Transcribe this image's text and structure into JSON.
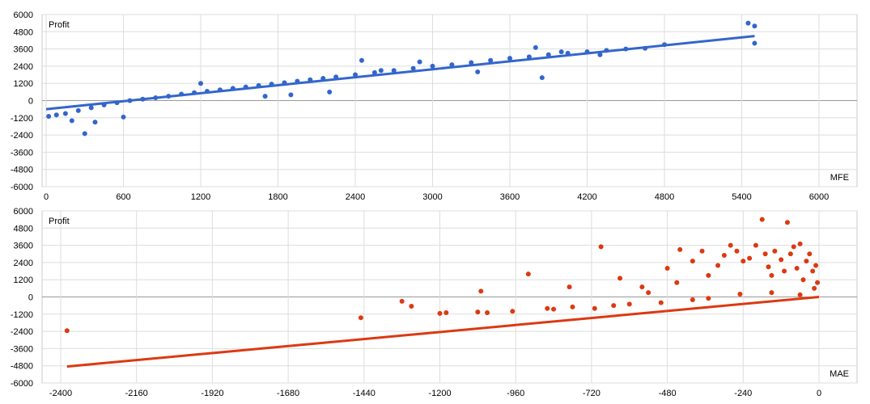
{
  "chart_data": [
    {
      "type": "scatter",
      "xlabel": "MFE",
      "ylabel": "Profit",
      "xlim": [
        0,
        6000
      ],
      "ylim": [
        -6000,
        6000
      ],
      "x_ticks": [
        "0",
        "600",
        "1200",
        "1800",
        "2400",
        "3000",
        "3600",
        "4200",
        "4800",
        "5400",
        "6000"
      ],
      "y_ticks": [
        "6000",
        "4800",
        "3600",
        "2400",
        "1200",
        "0",
        "-1200",
        "-2400",
        "-3600",
        "-4800",
        "-6000"
      ],
      "grid": true,
      "color": "#3366cc",
      "points": [
        [
          300,
          -2300
        ],
        [
          200,
          -1400
        ],
        [
          380,
          -1500
        ],
        [
          600,
          -1150
        ],
        [
          20,
          -1100
        ],
        [
          80,
          -1000
        ],
        [
          150,
          -900
        ],
        [
          250,
          -700
        ],
        [
          350,
          -500
        ],
        [
          450,
          -300
        ],
        [
          550,
          -150
        ],
        [
          650,
          0
        ],
        [
          750,
          100
        ],
        [
          850,
          200
        ],
        [
          950,
          300
        ],
        [
          1050,
          450
        ],
        [
          1150,
          550
        ],
        [
          1250,
          650
        ],
        [
          1350,
          750
        ],
        [
          1450,
          850
        ],
        [
          1550,
          950
        ],
        [
          1650,
          1050
        ],
        [
          1750,
          1150
        ],
        [
          1850,
          1250
        ],
        [
          1950,
          1350
        ],
        [
          2050,
          1450
        ],
        [
          2150,
          1550
        ],
        [
          2250,
          1650
        ],
        [
          2400,
          1800
        ],
        [
          2550,
          1950
        ],
        [
          2700,
          2100
        ],
        [
          2850,
          2250
        ],
        [
          3000,
          2400
        ],
        [
          3150,
          2500
        ],
        [
          3300,
          2650
        ],
        [
          3450,
          2800
        ],
        [
          3600,
          2950
        ],
        [
          3750,
          3050
        ],
        [
          3900,
          3200
        ],
        [
          4050,
          3300
        ],
        [
          4200,
          3400
        ],
        [
          4350,
          3500
        ],
        [
          4500,
          3600
        ],
        [
          4650,
          3650
        ],
        [
          4800,
          3900
        ],
        [
          3850,
          1600
        ],
        [
          3350,
          2000
        ],
        [
          1900,
          400
        ],
        [
          2200,
          600
        ],
        [
          1700,
          300
        ],
        [
          2600,
          2100
        ],
        [
          2900,
          2700
        ],
        [
          3800,
          3700
        ],
        [
          4000,
          3400
        ],
        [
          5450,
          5400
        ],
        [
          5500,
          5200
        ],
        [
          5500,
          4000
        ],
        [
          4300,
          3200
        ],
        [
          2450,
          2800
        ],
        [
          1200,
          1200
        ]
      ],
      "trendline": [
        [
          0,
          -600
        ],
        [
          5500,
          4500
        ]
      ]
    },
    {
      "type": "scatter",
      "xlabel": "MAE",
      "ylabel": "Profit",
      "xlim": [
        -2400,
        0
      ],
      "ylim": [
        -6000,
        6000
      ],
      "x_ticks": [
        "-2400",
        "-2160",
        "-1920",
        "-1680",
        "-1440",
        "-1200",
        "-960",
        "-720",
        "-480",
        "-240",
        "0"
      ],
      "y_ticks": [
        "6000",
        "4800",
        "3600",
        "2400",
        "1200",
        "0",
        "-1200",
        "-2400",
        "-3600",
        "-4800",
        "-6000"
      ],
      "grid": true,
      "color": "#dc3912",
      "points": [
        [
          -2380,
          -2350
        ],
        [
          -1450,
          -1450
        ],
        [
          -1320,
          -300
        ],
        [
          -1290,
          -650
        ],
        [
          -1200,
          -1150
        ],
        [
          -1180,
          -1100
        ],
        [
          -1080,
          -1050
        ],
        [
          -1070,
          400
        ],
        [
          -1050,
          -1100
        ],
        [
          -970,
          -1000
        ],
        [
          -920,
          1600
        ],
        [
          -860,
          -800
        ],
        [
          -840,
          -850
        ],
        [
          -790,
          700
        ],
        [
          -780,
          -700
        ],
        [
          -710,
          -800
        ],
        [
          -690,
          3500
        ],
        [
          -650,
          -600
        ],
        [
          -630,
          1300
        ],
        [
          -600,
          -500
        ],
        [
          -560,
          700
        ],
        [
          -540,
          300
        ],
        [
          -500,
          -400
        ],
        [
          -480,
          2000
        ],
        [
          -450,
          1000
        ],
        [
          -440,
          3300
        ],
        [
          -400,
          2500
        ],
        [
          -370,
          3200
        ],
        [
          -350,
          1500
        ],
        [
          -320,
          2200
        ],
        [
          -300,
          2900
        ],
        [
          -280,
          3600
        ],
        [
          -260,
          3200
        ],
        [
          -240,
          2500
        ],
        [
          -220,
          2700
        ],
        [
          -200,
          3600
        ],
        [
          -180,
          5400
        ],
        [
          -170,
          3000
        ],
        [
          -160,
          2100
        ],
        [
          -150,
          1500
        ],
        [
          -140,
          3200
        ],
        [
          -120,
          2600
        ],
        [
          -110,
          1800
        ],
        [
          -100,
          5200
        ],
        [
          -90,
          3000
        ],
        [
          -80,
          3500
        ],
        [
          -70,
          2000
        ],
        [
          -60,
          3700
        ],
        [
          -50,
          1200
        ],
        [
          -40,
          2500
        ],
        [
          -30,
          3000
        ],
        [
          -20,
          1800
        ],
        [
          -15,
          600
        ],
        [
          -10,
          2200
        ],
        [
          -5,
          1000
        ],
        [
          -350,
          -100
        ],
        [
          -250,
          200
        ],
        [
          -150,
          300
        ],
        [
          -60,
          150
        ],
        [
          -400,
          -200
        ]
      ],
      "trendline": [
        [
          -2380,
          -4850
        ],
        [
          0,
          0
        ]
      ]
    }
  ]
}
